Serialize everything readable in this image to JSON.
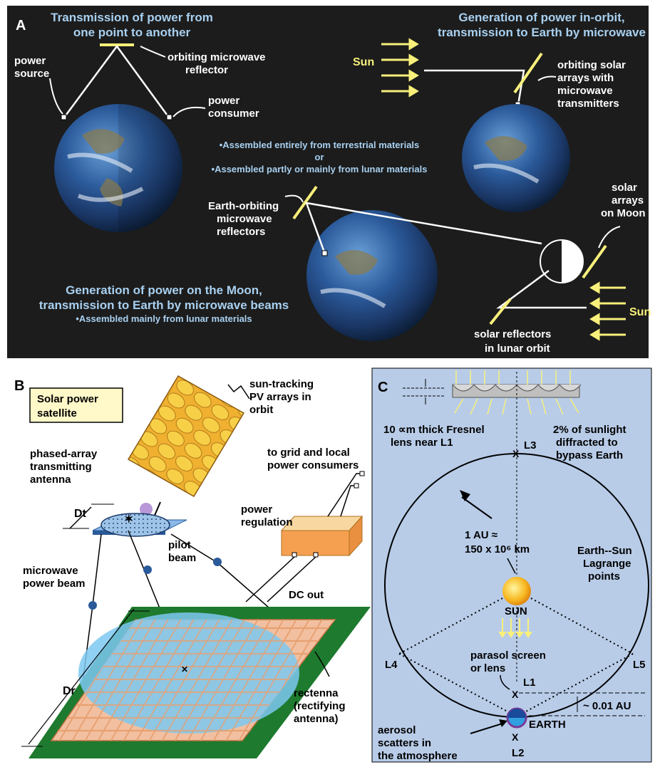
{
  "panel_a": {
    "letter": "A",
    "title1_line1": "Transmission of power from",
    "title1_line2": "one point to another",
    "power_source_1": "power",
    "power_source_2": "source",
    "reflector_1": "orbiting microwave",
    "reflector_2": "reflector",
    "consumer_1": "power",
    "consumer_2": "consumer",
    "assembled_1": "•Assembled entirely from terrestrial materials",
    "assembled_or": "or",
    "assembled_2": "•Assembled partly or mainly from lunar materials",
    "title2_line1": "Generation of power in-orbit,",
    "title2_line2": "transmission to Earth by microwave",
    "sun": "Sun",
    "arrays_1": "orbiting solar",
    "arrays_2": "arrays with",
    "arrays_3": "microwave",
    "arrays_4": "transmitters",
    "moon_arrays_1": "solar",
    "moon_arrays_2": "arrays",
    "moon_arrays_3": "on Moon",
    "eorbit_1": "Earth-orbiting",
    "eorbit_2": "microwave",
    "eorbit_3": "reflectors",
    "title3_line1": "Generation of power on the Moon,",
    "title3_line2": "transmission to Earth by microwave beams",
    "title3_line3": "•Assembled mainly from lunar materials",
    "sun2": "Sun",
    "lunar_refl_1": "solar reflectors",
    "lunar_refl_2": "in lunar orbit"
  },
  "panel_b": {
    "letter": "B",
    "box_1": "Solar power",
    "box_2": "satellite",
    "pv_1": "sun-tracking",
    "pv_2": "PV arrays in",
    "pv_3": "orbit",
    "phased_1": "phased-array",
    "phased_2": "transmitting",
    "phased_3": "antenna",
    "dt": "Dt",
    "grid_1": "to grid and local",
    "grid_2": "power consumers",
    "reg_1": "power",
    "reg_2": "regulation",
    "pilot_1": "pilot",
    "pilot_2": "beam",
    "mw_1": "microwave",
    "mw_2": "power beam",
    "dc": "DC out",
    "dr": "Dr",
    "rect_1": "rectenna",
    "rect_2": "(rectifying",
    "rect_3": "antenna)"
  },
  "panel_c": {
    "letter": "C",
    "fresnel_1": "10 ∝m thick Fresnel",
    "fresnel_2": "lens near L1",
    "diff_1": "2% of sunlight",
    "diff_2": "diffracted to",
    "diff_3": "bypass Earth",
    "l3": "L3",
    "au_1": "1 AU ≈",
    "au_2": "150 x 10⁶ km",
    "lag_1": "Earth--Sun",
    "lag_2": "Lagrange",
    "lag_3": "points",
    "sun": "SUN",
    "l4": "L4",
    "l5": "L5",
    "parasol_1": "parasol screen",
    "parasol_2": "or lens",
    "l1": "L1",
    "dist": "~ 0.01 AU",
    "earth": "EARTH",
    "aerosol_1": "aerosol",
    "aerosol_2": "scatters in",
    "aerosol_3": "the atmosphere",
    "l2": "L2"
  },
  "colors": {
    "panel_a_bg": "#1c1c1c",
    "panel_c_bg": "#b8cce8",
    "title_blue": "#a8d0f0",
    "sun_yellow": "#f8f07a",
    "pv_orange": "#f0b030",
    "rectenna_green": "#1e7a2e",
    "rectenna_blue": "#7cc8f0"
  }
}
